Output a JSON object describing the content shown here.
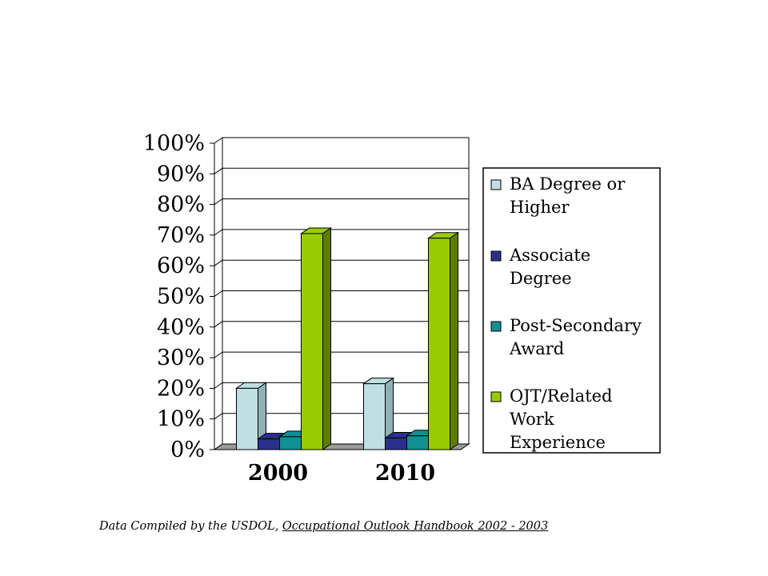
{
  "chart_data": {
    "type": "bar",
    "categories": [
      "2000",
      "2010"
    ],
    "series": [
      {
        "name": "BA Degree or Higher",
        "values": [
          20,
          21.5
        ],
        "color": "#c0dfe3",
        "side": "#8fb1b5"
      },
      {
        "name": "Associate Degree",
        "values": [
          3.5,
          3.8
        ],
        "color": "#2b2f8c",
        "side": "#1c1f5e"
      },
      {
        "name": "Post-Secondary Award",
        "values": [
          4.2,
          4.5
        ],
        "color": "#129093",
        "side": "#0b6163"
      },
      {
        "name": "OJT/Related Work Experience",
        "values": [
          70.5,
          69
        ],
        "color": "#99cc00",
        "side": "#5e7d00"
      }
    ],
    "ylim": [
      0,
      100
    ],
    "yticks": [
      "0%",
      "10%",
      "20%",
      "30%",
      "40%",
      "50%",
      "60%",
      "70%",
      "80%",
      "90%",
      "100%"
    ],
    "grid": true,
    "legend_position": "right"
  },
  "source": {
    "prefix": "Data Compiled by the USDOL, ",
    "title": "Occupational Outlook Handbook 2002 - 2003"
  }
}
